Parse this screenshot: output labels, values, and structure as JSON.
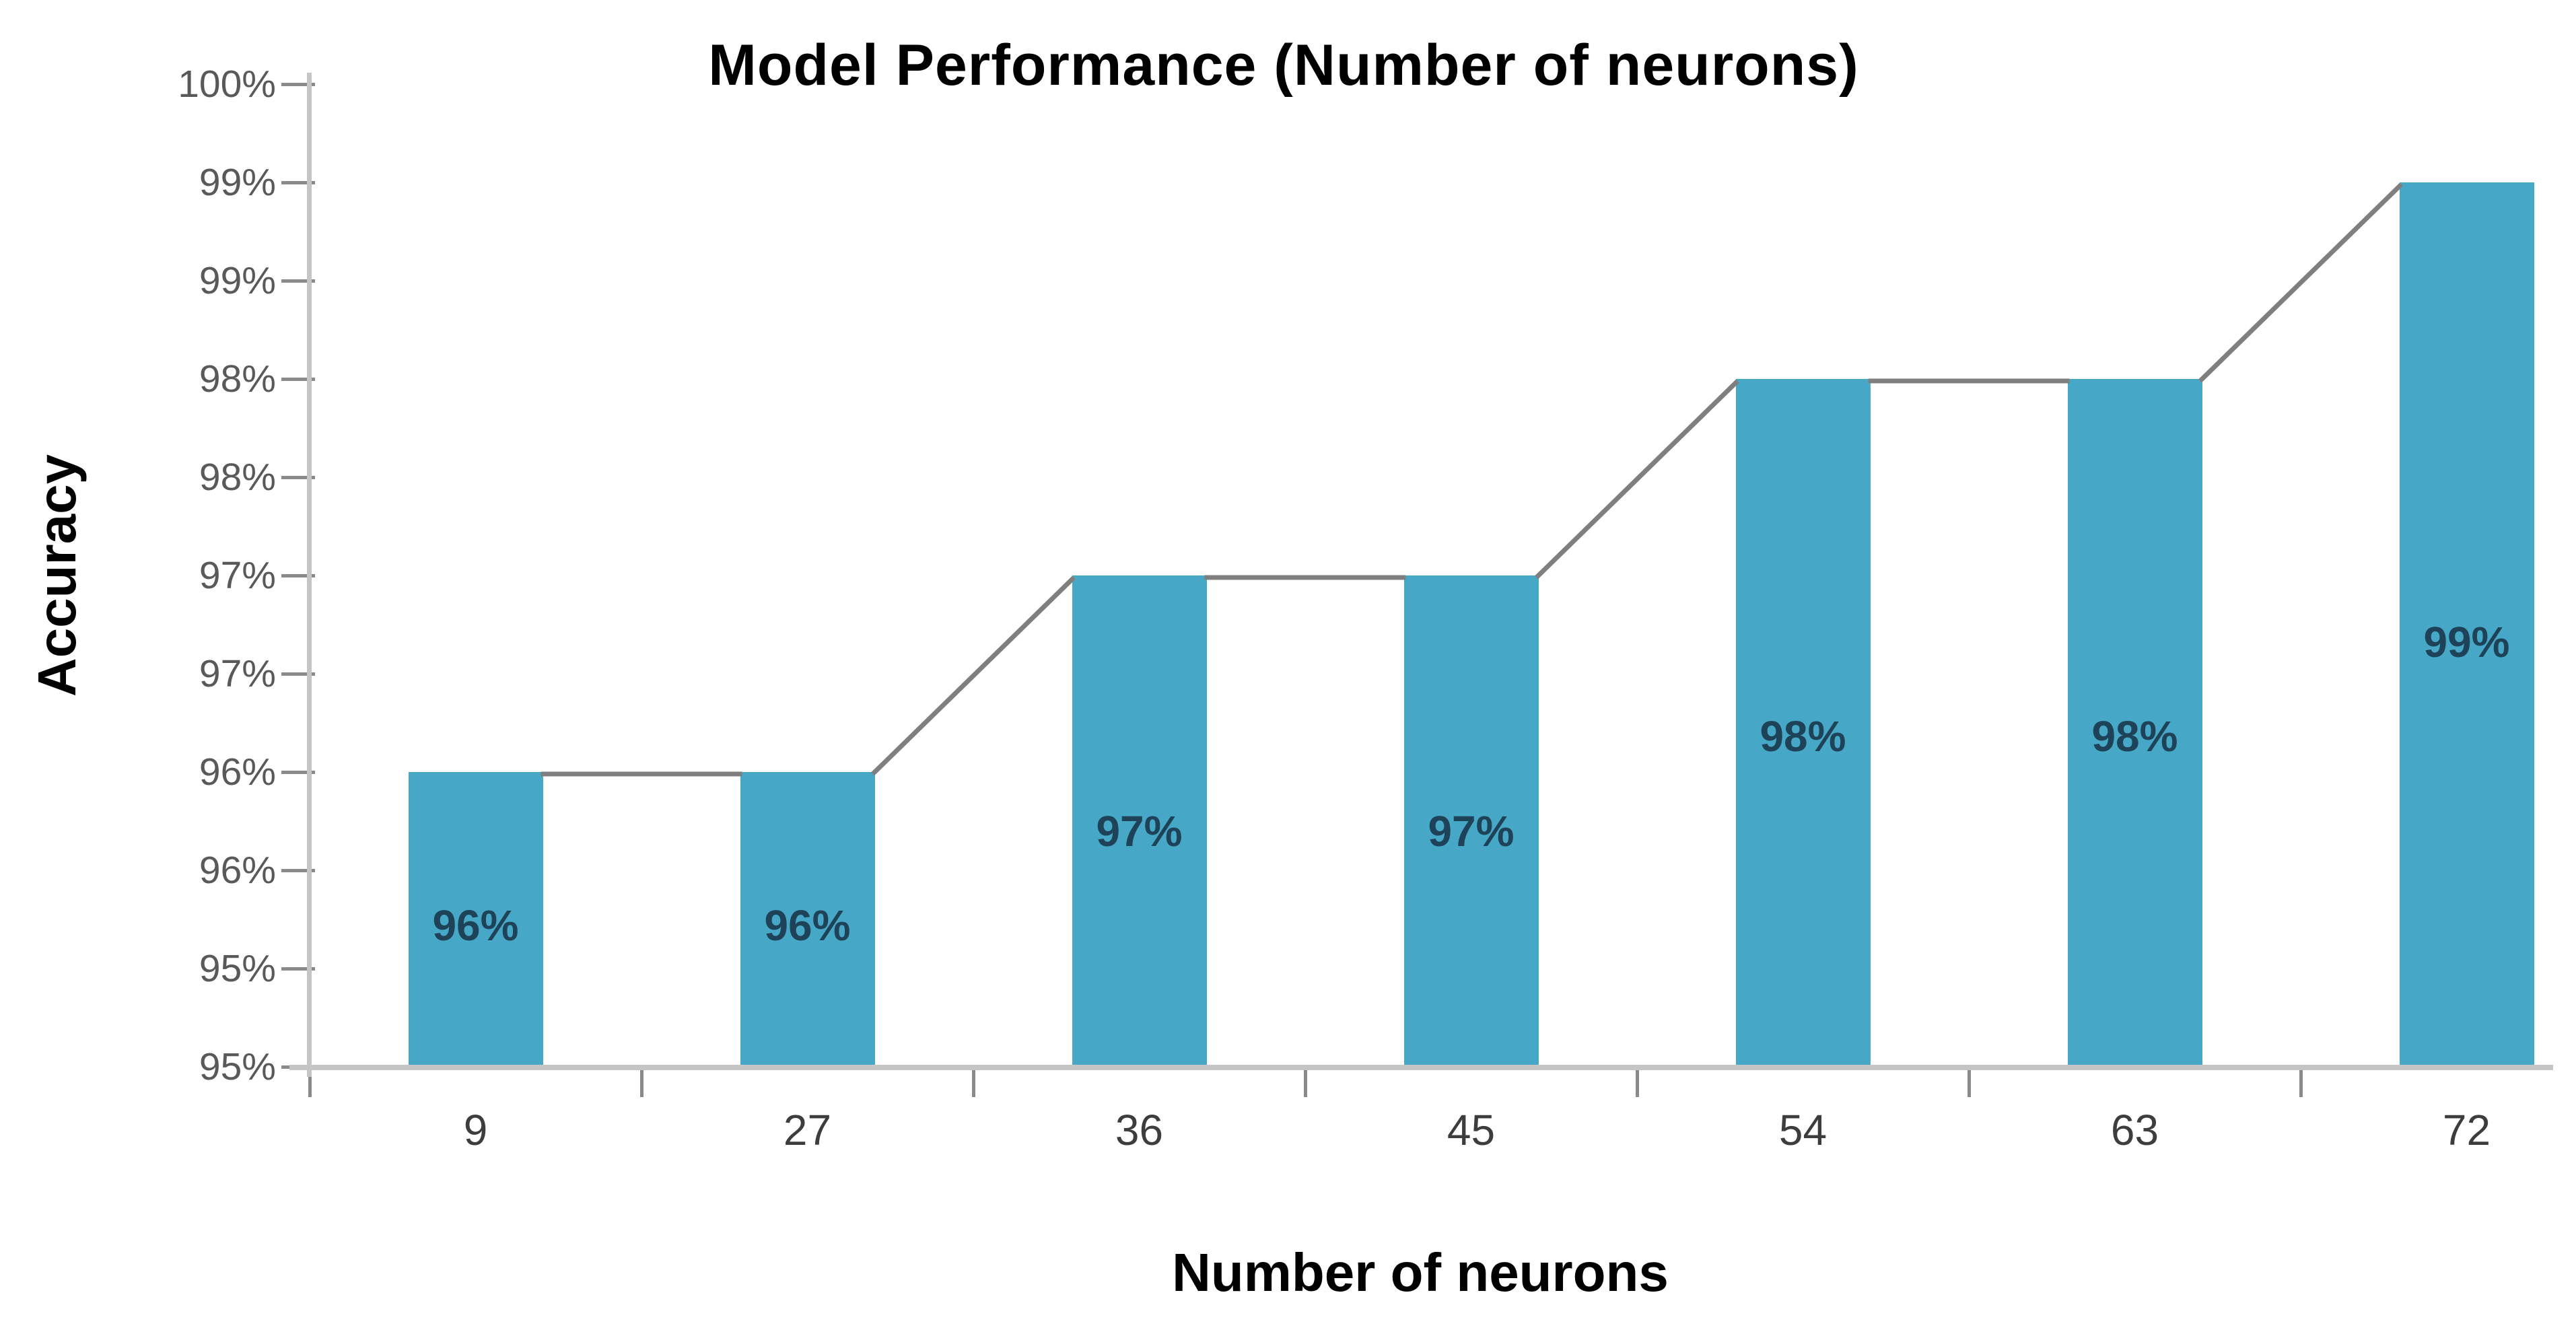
{
  "title": "Model Performance (Number of neurons)",
  "chart_data": {
    "type": "bar",
    "title": "Model Performance (Number of neurons)",
    "xlabel": "Number of neurons",
    "ylabel": "Accuracy",
    "categories": [
      "9",
      "27",
      "36",
      "45",
      "54",
      "63",
      "72"
    ],
    "values": [
      96,
      96,
      97,
      97,
      98,
      98,
      99
    ],
    "bar_labels": [
      "96%",
      "96%",
      "97%",
      "97%",
      "98%",
      "98%",
      "99%"
    ],
    "series": [
      {
        "name": "Accuracy",
        "values": [
          96,
          96,
          97,
          97,
          98,
          98,
          99
        ]
      }
    ],
    "y_axis": {
      "min": 94.5,
      "max": 99.5,
      "step": 0.5,
      "tick_labels_top_to_bottom": [
        "100%",
        "99%",
        "99%",
        "98%",
        "98%",
        "97%",
        "97%",
        "96%",
        "96%",
        "95%",
        "95%"
      ]
    },
    "grid": false,
    "legend_position": "none",
    "connector_line_between_bar_tops": true,
    "colors": {
      "bar_fill": "#46A8C6",
      "bar_label": "#1E4258",
      "connector_line": "#7F7F7F",
      "axis_line": "#C5C5C5",
      "tick_mark": "#8A8A8A",
      "y_tick_label": "#595959",
      "x_tick_label": "#3D3D3D",
      "title": "#000000"
    }
  }
}
